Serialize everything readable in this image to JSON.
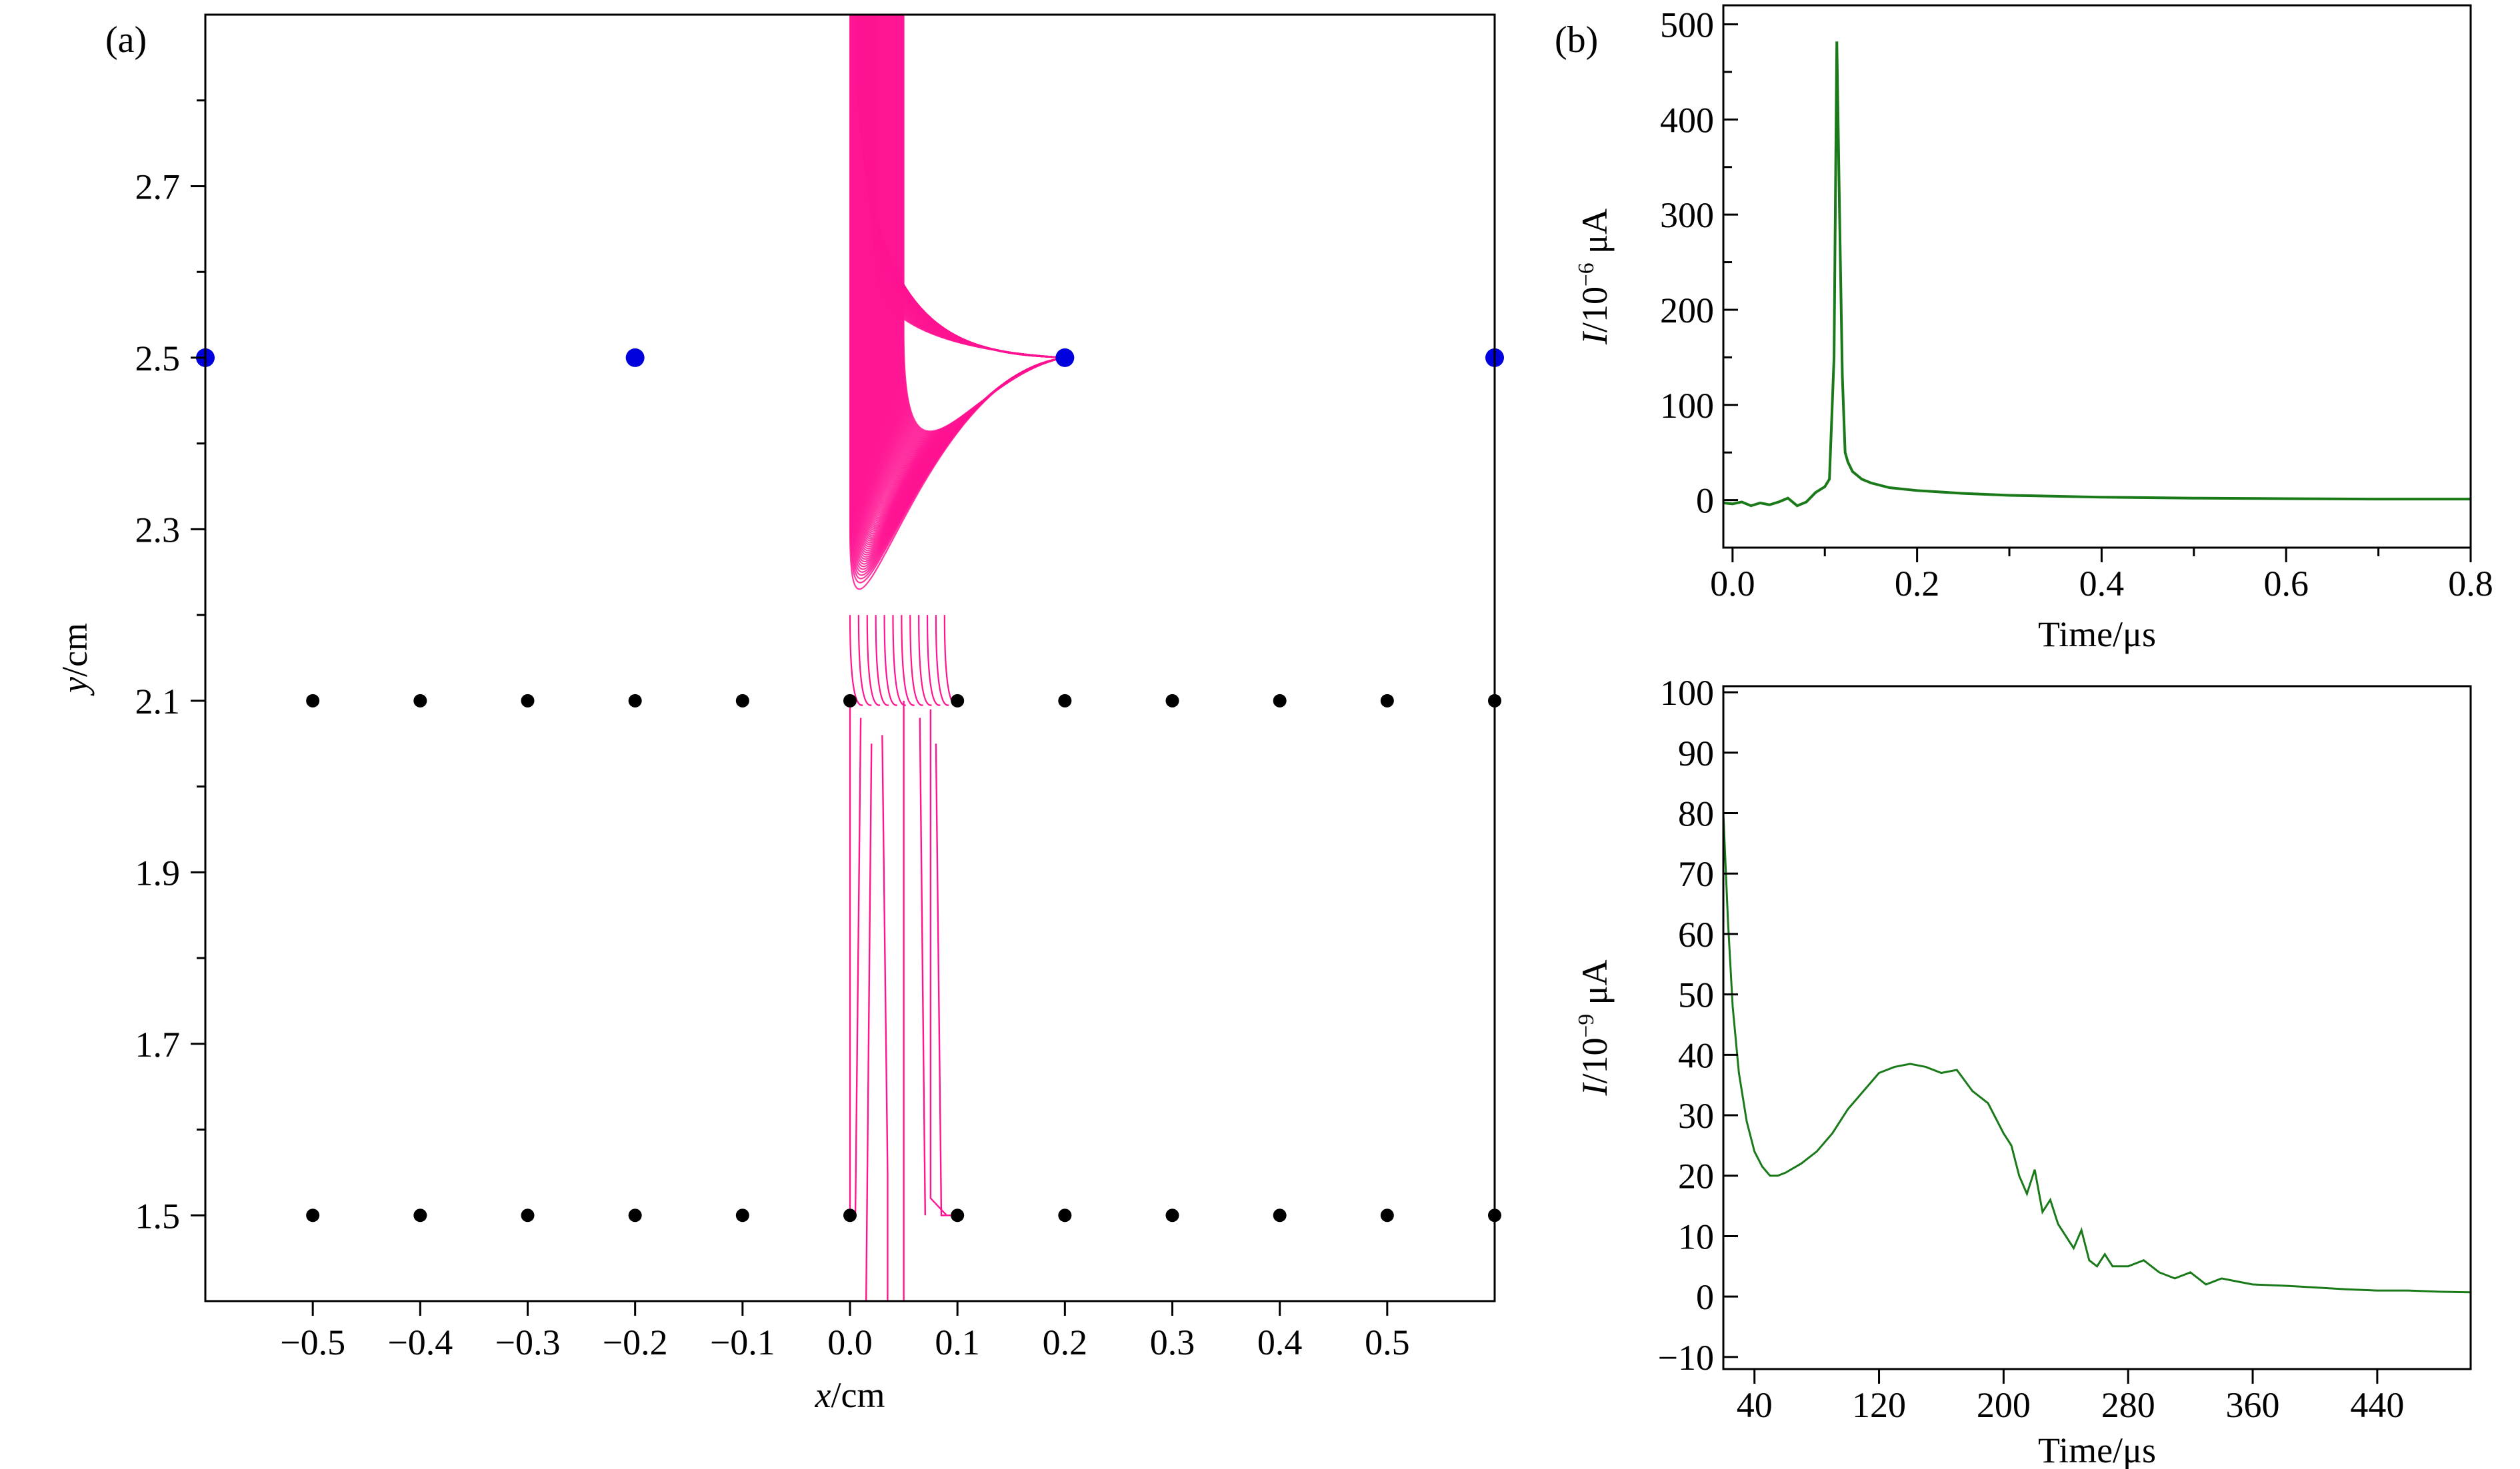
{
  "panel_labels": {
    "a": "(a)",
    "b": "(b)"
  },
  "colors": {
    "trajectory": "#ff1493",
    "anode_wire": "#0000dd",
    "mesh_wire": "#000000",
    "current_line": "#1a7a1a",
    "axes": "#000000"
  },
  "chart_data": [
    {
      "id": "a",
      "type": "scatter",
      "xlabel_italic": "x",
      "xlabel_unit": "/cm",
      "ylabel_italic": "y",
      "ylabel_unit": "/cm",
      "xlim": [
        -0.6,
        0.6
      ],
      "ylim": [
        1.4,
        2.9
      ],
      "xticks": [
        -0.5,
        -0.4,
        -0.3,
        -0.2,
        -0.1,
        0.0,
        0.1,
        0.2,
        0.3,
        0.4,
        0.5
      ],
      "xtick_labels": [
        "−0.5",
        "−0.4",
        "−0.3",
        "−0.2",
        "−0.1",
        "0.0",
        "0.1",
        "0.2",
        "0.3",
        "0.4",
        "0.5"
      ],
      "yticks": [
        1.5,
        1.7,
        1.9,
        2.1,
        2.3,
        2.5,
        2.7
      ],
      "ytick_labels": [
        "1.5",
        "1.7",
        "1.9",
        "2.1",
        "2.3",
        "2.5",
        "2.7"
      ],
      "yticks_minor": [
        1.6,
        1.8,
        2.0,
        2.2,
        2.4,
        2.6,
        2.8
      ],
      "series": [
        {
          "role": "anode_wires",
          "color": "#0000dd",
          "points": [
            [
              -0.6,
              2.5
            ],
            [
              -0.2,
              2.5
            ],
            [
              0.2,
              2.5
            ],
            [
              0.6,
              2.5
            ]
          ]
        },
        {
          "role": "mesh_wires_upper",
          "color": "#000000",
          "y": 2.1,
          "x": [
            -0.5,
            -0.4,
            -0.3,
            -0.2,
            -0.1,
            0.0,
            0.1,
            0.2,
            0.3,
            0.4,
            0.5,
            0.6
          ]
        },
        {
          "role": "mesh_wires_lower",
          "color": "#000000",
          "y": 1.5,
          "x": [
            -0.5,
            -0.4,
            -0.3,
            -0.2,
            -0.1,
            0.0,
            0.1,
            0.2,
            0.3,
            0.4,
            0.5,
            0.6
          ]
        },
        {
          "role": "electron_drift_lines",
          "color": "#ff1493",
          "target": [
            0.2,
            2.5
          ],
          "entry_x_range": [
            0.0,
            0.09
          ],
          "top_y": 2.9
        }
      ]
    },
    {
      "id": "b-top",
      "type": "line",
      "xlabel": "Time/μs",
      "ylabel_italic": "I",
      "ylabel_unit": "/10",
      "ylabel_exp": "−6",
      "ylabel_suffix": " μA",
      "xlim": [
        -0.01,
        0.8
      ],
      "ylim": [
        -50,
        520
      ],
      "xticks": [
        0.0,
        0.2,
        0.4,
        0.6,
        0.8
      ],
      "xtick_labels": [
        "0.0",
        "0.2",
        "0.4",
        "0.6",
        "0.8"
      ],
      "yticks": [
        0,
        100,
        200,
        300,
        400,
        500
      ],
      "ytick_labels": [
        "0",
        "100",
        "200",
        "300",
        "400",
        "500"
      ],
      "series": [
        {
          "color": "#1a7a1a",
          "x": [
            -0.01,
            0.0,
            0.01,
            0.02,
            0.03,
            0.04,
            0.05,
            0.06,
            0.07,
            0.08,
            0.09,
            0.1,
            0.105,
            0.11,
            0.113,
            0.116,
            0.119,
            0.122,
            0.125,
            0.13,
            0.14,
            0.15,
            0.17,
            0.2,
            0.25,
            0.3,
            0.35,
            0.4,
            0.5,
            0.6,
            0.7,
            0.8
          ],
          "y": [
            -3,
            -4,
            -2,
            -6,
            -3,
            -5,
            -2,
            2,
            -6,
            -2,
            8,
            14,
            22,
            150,
            482,
            300,
            130,
            50,
            40,
            30,
            22,
            18,
            13,
            10,
            7,
            5,
            4,
            3,
            2,
            1.5,
            1,
            1
          ]
        }
      ]
    },
    {
      "id": "b-bottom",
      "type": "line",
      "xlabel": "Time/μs",
      "ylabel_italic": "I",
      "ylabel_unit": "/10",
      "ylabel_exp": "−9",
      "ylabel_suffix": " μA",
      "xlim": [
        20,
        500
      ],
      "ylim": [
        -12,
        101
      ],
      "xticks": [
        40,
        120,
        200,
        280,
        360,
        440
      ],
      "xtick_labels": [
        "40",
        "120",
        "200",
        "280",
        "360",
        "440"
      ],
      "yticks": [
        -10,
        0,
        10,
        20,
        30,
        40,
        50,
        60,
        70,
        80,
        90,
        100
      ],
      "ytick_labels": [
        "−10",
        "0",
        "10",
        "20",
        "30",
        "40",
        "50",
        "60",
        "70",
        "80",
        "90",
        "100"
      ],
      "series": [
        {
          "color": "#1a7a1a",
          "x": [
            20,
            23,
            26,
            30,
            35,
            40,
            45,
            50,
            55,
            60,
            70,
            80,
            90,
            95,
            100,
            110,
            120,
            130,
            140,
            150,
            160,
            170,
            180,
            190,
            200,
            205,
            210,
            215,
            220,
            225,
            230,
            235,
            240,
            245,
            250,
            255,
            260,
            265,
            270,
            280,
            290,
            300,
            310,
            320,
            330,
            340,
            350,
            360,
            380,
            400,
            420,
            440,
            460,
            480,
            500
          ],
          "y": [
            80,
            62,
            48,
            37,
            29,
            24,
            21.5,
            20,
            20,
            20.5,
            22,
            24,
            27,
            29,
            31,
            34,
            37,
            38,
            38.5,
            38,
            37,
            37.5,
            34,
            32,
            27,
            25,
            20,
            17,
            21,
            14,
            16,
            12,
            10,
            8,
            11,
            6,
            5,
            7,
            5,
            5,
            6,
            4,
            3,
            4,
            2,
            3,
            2.5,
            2,
            1.8,
            1.5,
            1.2,
            1,
            1,
            0.8,
            0.7
          ]
        }
      ]
    }
  ]
}
